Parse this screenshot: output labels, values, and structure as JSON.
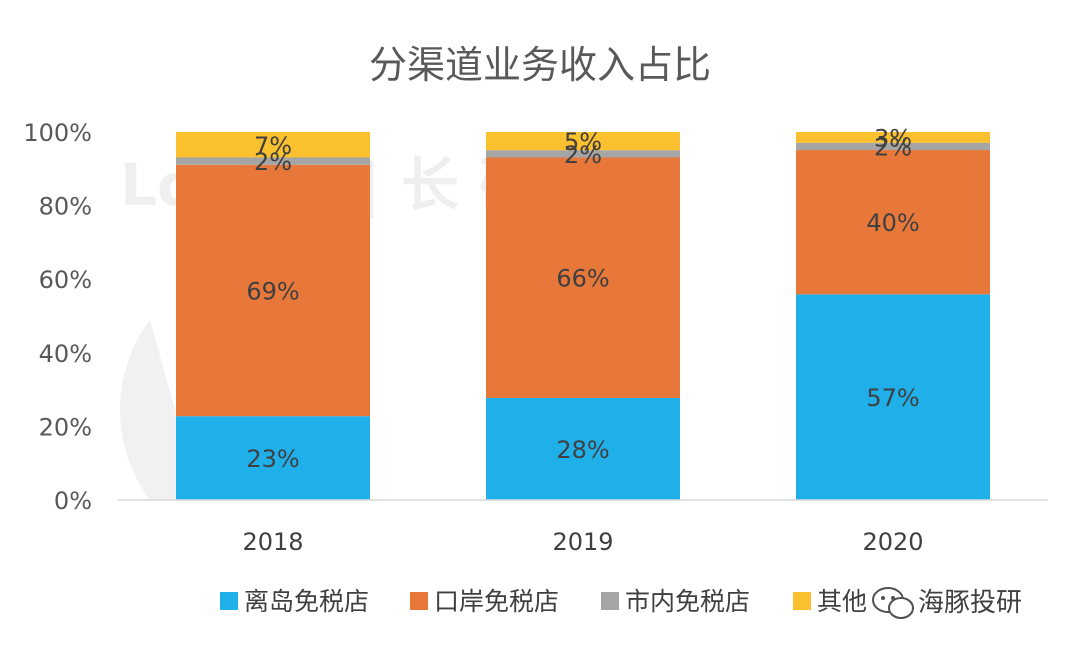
{
  "chart_data": {
    "type": "bar",
    "stacked": true,
    "title": "分渠道业务收入占比",
    "categories": [
      "2018",
      "2019",
      "2020"
    ],
    "series": [
      {
        "name": "离岛免税店",
        "color": "#1FB0EA",
        "values": [
          23,
          28,
          57
        ],
        "labels": [
          "23%",
          "28%",
          "57%"
        ]
      },
      {
        "name": "口岸免税店",
        "color": "#E8783A",
        "values": [
          69,
          66,
          40
        ],
        "labels": [
          "69%",
          "66%",
          "40%"
        ]
      },
      {
        "name": "市内免税店",
        "color": "#A5A5A5",
        "values": [
          2,
          2,
          2
        ],
        "labels": [
          "2%",
          "2%",
          "2%"
        ]
      },
      {
        "name": "其他",
        "color": "#FBC02D",
        "values": [
          7,
          5,
          3
        ],
        "labels": [
          "7%",
          "5%",
          "3%"
        ]
      }
    ],
    "yticks": [
      "0%",
      "20%",
      "40%",
      "60%",
      "80%",
      "100%"
    ],
    "ylim": [
      0,
      100
    ],
    "legend_position": "bottom"
  },
  "watermark": {
    "text": "Lo      dge  |  长      研"
  },
  "brand": {
    "name": "海豚投研"
  }
}
